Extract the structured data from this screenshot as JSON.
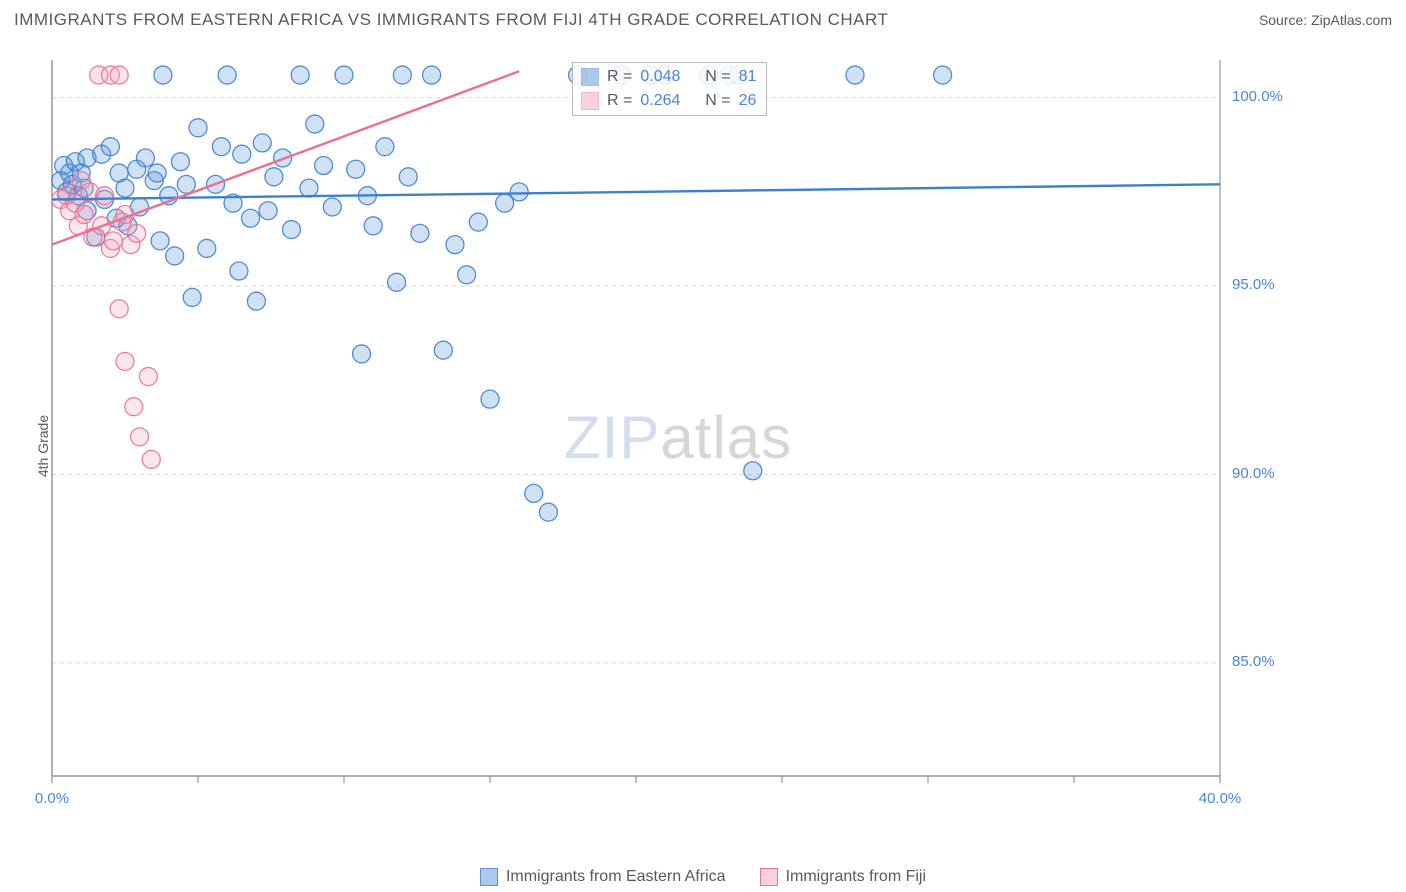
{
  "header": {
    "title": "IMMIGRANTS FROM EASTERN AFRICA VS IMMIGRANTS FROM FIJI 4TH GRADE CORRELATION CHART",
    "source_label": "Source:",
    "source_value": "ZipAtlas.com"
  },
  "chart": {
    "type": "scatter",
    "ylabel": "4th Grade",
    "xlim": [
      0,
      40
    ],
    "ylim": [
      82,
      101
    ],
    "ytick_labels": [
      "85.0%",
      "90.0%",
      "95.0%",
      "100.0%"
    ],
    "ytick_vals": [
      85,
      90,
      95,
      100
    ],
    "xtick_labels": [
      "0.0%",
      "40.0%"
    ],
    "xtick_vals": [
      0,
      40
    ],
    "x_minor_ticks": [
      0,
      5,
      10,
      15,
      20,
      25,
      30,
      35,
      40
    ],
    "grid_color": "#d8d8d8",
    "axis_color": "#808080",
    "background_color": "#ffffff",
    "marker_radius": 9,
    "marker_fill_opacity": 0.28,
    "marker_stroke_opacity": 0.9,
    "marker_stroke_width": 1.3,
    "trendline_width": 2.4,
    "series": [
      {
        "name": "Immigrants from Eastern Africa",
        "color": "#5b93d6",
        "stroke": "#3f7fcf",
        "R": "0.048",
        "N": "81",
        "trend": {
          "x1": 0,
          "y1": 97.3,
          "x2": 40,
          "y2": 97.7
        },
        "points": [
          [
            0.3,
            97.8
          ],
          [
            0.4,
            98.2
          ],
          [
            0.5,
            97.5
          ],
          [
            0.6,
            98.0
          ],
          [
            0.7,
            97.7
          ],
          [
            0.8,
            98.3
          ],
          [
            0.9,
            97.4
          ],
          [
            1.0,
            98.0
          ],
          [
            1.1,
            97.6
          ],
          [
            1.2,
            97.0
          ],
          [
            1.2,
            98.4
          ],
          [
            1.5,
            96.3
          ],
          [
            1.7,
            98.5
          ],
          [
            1.8,
            97.3
          ],
          [
            2.0,
            98.7
          ],
          [
            2.2,
            96.8
          ],
          [
            2.3,
            98.0
          ],
          [
            2.5,
            97.6
          ],
          [
            2.6,
            96.6
          ],
          [
            2.9,
            98.1
          ],
          [
            3.0,
            97.1
          ],
          [
            3.2,
            98.4
          ],
          [
            3.5,
            97.8
          ],
          [
            3.6,
            98.0
          ],
          [
            3.7,
            96.2
          ],
          [
            3.8,
            100.6
          ],
          [
            4.0,
            97.4
          ],
          [
            4.2,
            95.8
          ],
          [
            4.4,
            98.3
          ],
          [
            4.6,
            97.7
          ],
          [
            4.8,
            94.7
          ],
          [
            5.0,
            99.2
          ],
          [
            5.3,
            96.0
          ],
          [
            5.6,
            97.7
          ],
          [
            5.8,
            98.7
          ],
          [
            6.0,
            100.6
          ],
          [
            6.2,
            97.2
          ],
          [
            6.4,
            95.4
          ],
          [
            6.5,
            98.5
          ],
          [
            6.8,
            96.8
          ],
          [
            7.0,
            94.6
          ],
          [
            7.2,
            98.8
          ],
          [
            7.4,
            97.0
          ],
          [
            7.6,
            97.9
          ],
          [
            7.9,
            98.4
          ],
          [
            8.2,
            96.5
          ],
          [
            8.5,
            100.6
          ],
          [
            8.8,
            97.6
          ],
          [
            9.0,
            99.3
          ],
          [
            9.3,
            98.2
          ],
          [
            9.6,
            97.1
          ],
          [
            10.0,
            100.6
          ],
          [
            10.4,
            98.1
          ],
          [
            10.6,
            93.2
          ],
          [
            10.8,
            97.4
          ],
          [
            11.0,
            96.6
          ],
          [
            11.4,
            98.7
          ],
          [
            11.8,
            95.1
          ],
          [
            12.0,
            100.6
          ],
          [
            12.2,
            97.9
          ],
          [
            12.6,
            96.4
          ],
          [
            13.0,
            100.6
          ],
          [
            13.4,
            93.3
          ],
          [
            13.8,
            96.1
          ],
          [
            14.2,
            95.3
          ],
          [
            14.6,
            96.7
          ],
          [
            15.0,
            92.0
          ],
          [
            15.5,
            97.2
          ],
          [
            16.0,
            97.5
          ],
          [
            16.5,
            89.5
          ],
          [
            17.0,
            89.0
          ],
          [
            18.0,
            100.6
          ],
          [
            19.5,
            100.6
          ],
          [
            20.5,
            100.6
          ],
          [
            21.0,
            100.6
          ],
          [
            22.5,
            100.6
          ],
          [
            23.2,
            100.6
          ],
          [
            23.5,
            100.6
          ],
          [
            24.0,
            90.1
          ],
          [
            27.5,
            100.6
          ],
          [
            30.5,
            100.6
          ]
        ]
      },
      {
        "name": "Immigrants from Fiji",
        "color": "#f2a6bb",
        "stroke": "#eb7095",
        "R": "0.264",
        "N": "26",
        "trend": {
          "x1": 0,
          "y1": 96.1,
          "x2": 16,
          "y2": 100.7
        },
        "points": [
          [
            0.3,
            97.3
          ],
          [
            0.5,
            97.4
          ],
          [
            0.6,
            97.0
          ],
          [
            0.8,
            97.2
          ],
          [
            0.9,
            96.6
          ],
          [
            1.0,
            97.8
          ],
          [
            1.1,
            96.9
          ],
          [
            1.3,
            97.5
          ],
          [
            1.4,
            96.3
          ],
          [
            1.6,
            100.6
          ],
          [
            1.7,
            96.6
          ],
          [
            1.8,
            97.4
          ],
          [
            2.0,
            100.6
          ],
          [
            2.0,
            96.0
          ],
          [
            2.1,
            96.2
          ],
          [
            2.3,
            100.6
          ],
          [
            2.3,
            94.4
          ],
          [
            2.4,
            96.7
          ],
          [
            2.5,
            96.9
          ],
          [
            2.5,
            93.0
          ],
          [
            2.7,
            96.1
          ],
          [
            2.8,
            91.8
          ],
          [
            2.9,
            96.4
          ],
          [
            3.0,
            91.0
          ],
          [
            3.3,
            92.6
          ],
          [
            3.4,
            90.4
          ]
        ]
      }
    ]
  },
  "stats_labels": {
    "R": "R =",
    "N": "N ="
  },
  "watermark": {
    "part1": "ZIP",
    "part2": "atlas"
  },
  "legend_bottom": [
    {
      "label": "Immigrants from Eastern Africa",
      "fill": "#aec8eb",
      "stroke": "#5b93d6"
    },
    {
      "label": "Immigrants from Fiji",
      "fill": "#f9d2dc",
      "stroke": "#eb7095"
    }
  ]
}
